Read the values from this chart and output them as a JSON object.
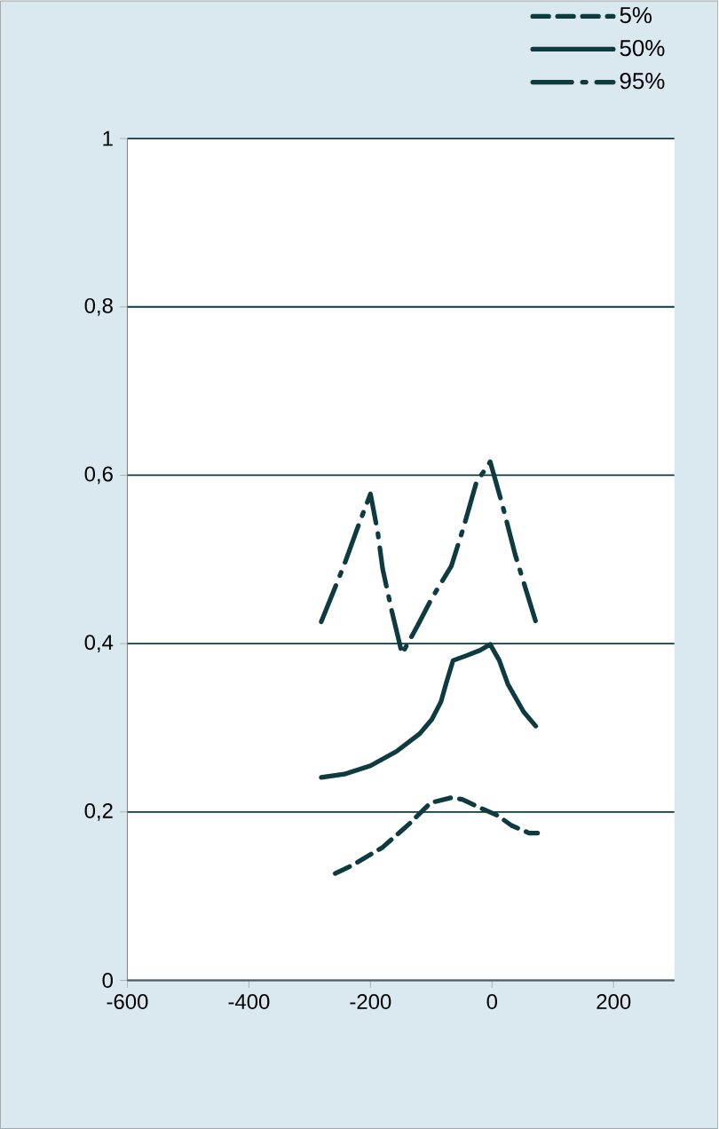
{
  "chart_data": {
    "type": "line",
    "xlim": [
      -600,
      300
    ],
    "ylim": [
      0,
      1
    ],
    "xticks": [
      -600,
      -400,
      -200,
      0,
      200
    ],
    "yticks": [
      {
        "value": 0,
        "label": "0"
      },
      {
        "value": 0.2,
        "label": "0,2"
      },
      {
        "value": 0.4,
        "label": "0,4"
      },
      {
        "value": 0.6,
        "label": "0,6"
      },
      {
        "value": 0.8,
        "label": "0,8"
      },
      {
        "value": 1,
        "label": "1"
      }
    ],
    "grid": "y",
    "legend": "top right",
    "marker": "none",
    "series": [
      {
        "name": "5%",
        "color": "#0d3b40",
        "line_style": "dashed",
        "x": [
          -258,
          -229,
          -180,
          -136,
          -101,
          -67,
          -49,
          -20,
          9,
          32,
          61,
          75
        ],
        "values": [
          0.127,
          0.137,
          0.158,
          0.186,
          0.211,
          0.217,
          0.215,
          0.205,
          0.196,
          0.184,
          0.175,
          0.175
        ]
      },
      {
        "name": "50%",
        "color": "#0d3b40",
        "line_style": "solid",
        "x": [
          -281,
          -243,
          -200,
          -157,
          -119,
          -99,
          -84,
          -75,
          -64,
          -41,
          -20,
          -3,
          12,
          26,
          52,
          72
        ],
        "values": [
          0.241,
          0.245,
          0.255,
          0.272,
          0.293,
          0.31,
          0.331,
          0.354,
          0.38,
          0.386,
          0.392,
          0.399,
          0.38,
          0.352,
          0.319,
          0.302
        ]
      },
      {
        "name": "95%",
        "color": "#0d3b40",
        "line_style": "dashdot",
        "x": [
          -281,
          -243,
          -220,
          -200,
          -188,
          -180,
          -165,
          -148,
          -122,
          -99,
          -67,
          -46,
          -26,
          -3,
          17,
          38,
          72
        ],
        "values": [
          0.426,
          0.494,
          0.54,
          0.578,
          0.532,
          0.489,
          0.439,
          0.388,
          0.422,
          0.454,
          0.492,
          0.54,
          0.591,
          0.616,
          0.565,
          0.506,
          0.426
        ]
      }
    ]
  }
}
